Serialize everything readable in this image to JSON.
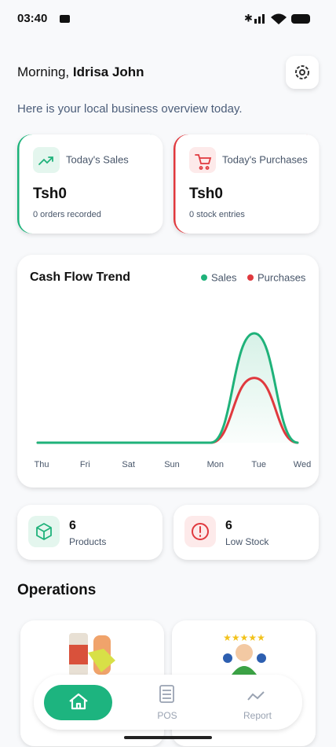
{
  "status": {
    "time": "03:40"
  },
  "greeting": {
    "prefix": "Morning,",
    "name": "Idrisa John"
  },
  "subtitle": "Here is your local business overview today.",
  "cards": [
    {
      "title": "Today's Sales",
      "amount": "Tsh0",
      "note": "0 orders recorded",
      "color": "#1fb27a"
    },
    {
      "title": "Today's Purchases",
      "amount": "Tsh0",
      "note": "0 stock entries",
      "color": "#e0393e"
    }
  ],
  "chart_data": {
    "type": "line",
    "title": "Cash Flow Trend",
    "categories": [
      "Thu",
      "Fri",
      "Sat",
      "Sun",
      "Mon",
      "Tue",
      "Wed"
    ],
    "series": [
      {
        "name": "Sales",
        "color": "#1fb27a",
        "values": [
          0,
          0,
          0,
          0,
          0,
          76,
          0
        ]
      },
      {
        "name": "Purchases",
        "color": "#e0393e",
        "values": [
          0,
          0,
          0,
          0,
          0,
          45,
          0
        ]
      }
    ],
    "ylim": [
      0,
      100
    ]
  },
  "stats": [
    {
      "value": "6",
      "label": "Products"
    },
    {
      "value": "6",
      "label": "Low Stock"
    }
  ],
  "operations": {
    "title": "Operations"
  },
  "nav": {
    "items": [
      "POS",
      "Report"
    ]
  }
}
